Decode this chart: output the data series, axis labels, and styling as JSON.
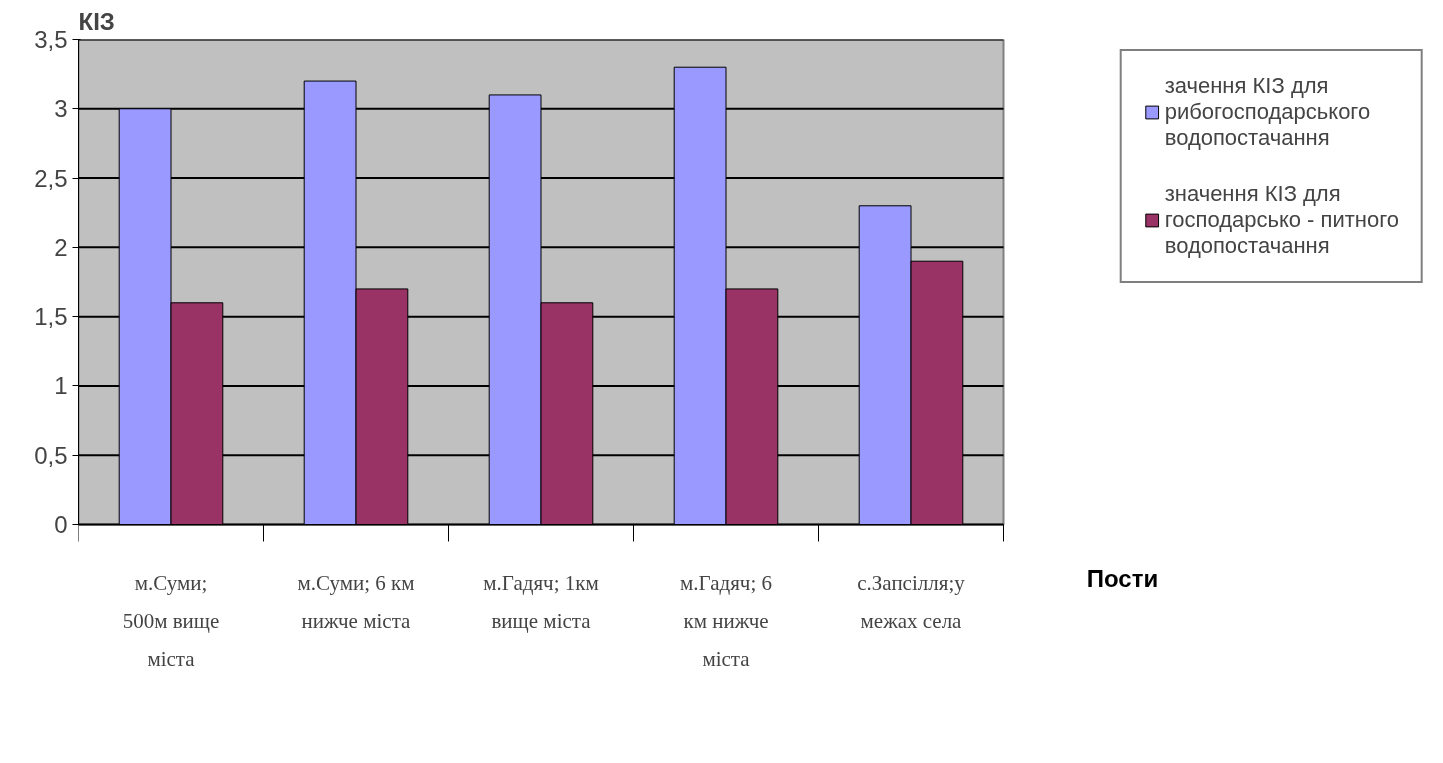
{
  "chart_data": {
    "type": "bar",
    "ylabel": "КІЗ",
    "xlabel": "Пости",
    "categories": [
      "м.Суми;\n500м вище\nміста",
      "м.Суми; 6 км\nнижче міста",
      "м.Гадяч; 1км\nвище міста",
      "м.Гадяч; 6\nкм нижче\nміста",
      "с.Запсілля;у\nмежах села"
    ],
    "series": [
      {
        "name": "зачення КІЗ для рибогосподарського водопостачання",
        "color": "#9999ff",
        "values": [
          3.0,
          3.2,
          3.1,
          3.3,
          2.3
        ]
      },
      {
        "name": "значення КІЗ для господарсько - питного водопостачання",
        "color": "#993366",
        "values": [
          1.6,
          1.7,
          1.6,
          1.7,
          1.9
        ]
      }
    ],
    "ylim": [
      0,
      3.5
    ],
    "yticks": [
      {
        "value": 0,
        "label": "0"
      },
      {
        "value": 0.5,
        "label": "0,5"
      },
      {
        "value": 1,
        "label": "1"
      },
      {
        "value": 1.5,
        "label": "1,5"
      },
      {
        "value": 2,
        "label": "2"
      },
      {
        "value": 2.5,
        "label": "2,5"
      },
      {
        "value": 3,
        "label": "3"
      },
      {
        "value": 3.5,
        "label": "3,5"
      }
    ],
    "grid": "y",
    "legend": "right"
  }
}
